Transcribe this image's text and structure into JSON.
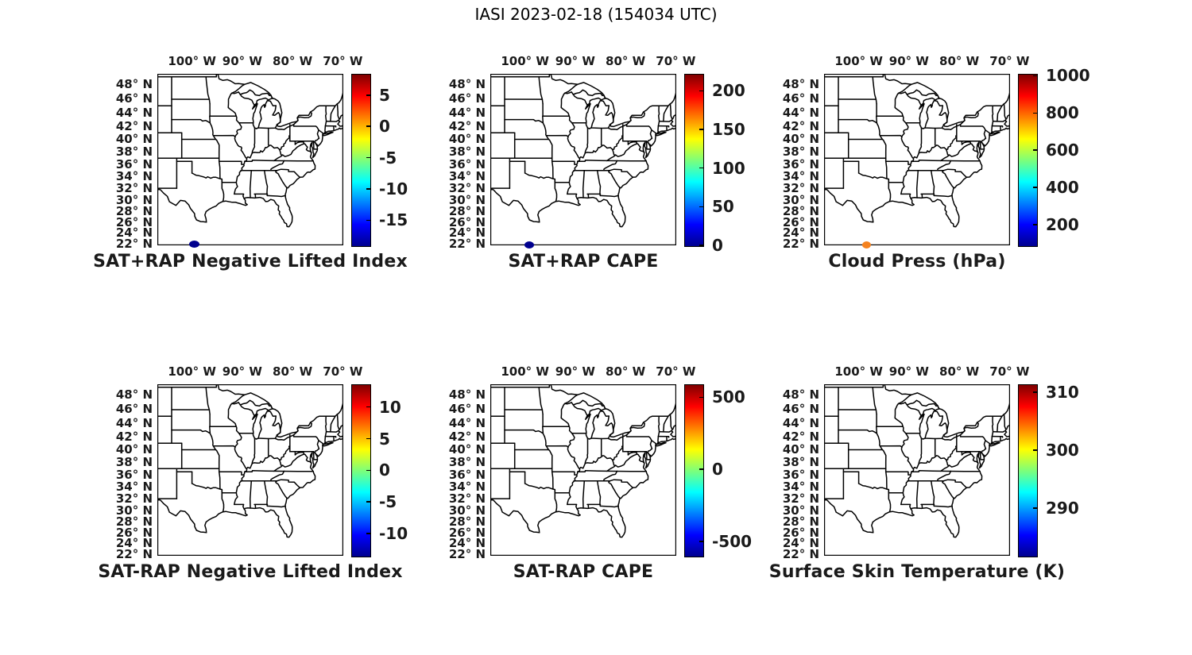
{
  "figure_title": "IASI 2023-02-18 (154034 UTC)",
  "colors": {
    "background": "#ffffff",
    "map_line": "#000000",
    "text": "#1a1a1a",
    "point_low": "#00008F",
    "point_orange": "#F5821F"
  },
  "chart_data": {
    "type": "map-scatter-grid",
    "projection": "mercator",
    "colormap": "jet",
    "grid": {
      "rows": 2,
      "cols": 3
    },
    "extent": {
      "lon_min": -106.9,
      "lon_max": -69.9,
      "lat_min": 21.7,
      "lat_max": 49.4
    },
    "lon_ticks": [
      {
        "value": -100,
        "label": "100° W"
      },
      {
        "value": -90,
        "label": "90° W"
      },
      {
        "value": -80,
        "label": "80° W"
      },
      {
        "value": -70,
        "label": "70° W"
      }
    ],
    "lat_ticks": [
      {
        "value": 48,
        "label": "48° N"
      },
      {
        "value": 46,
        "label": "46° N"
      },
      {
        "value": 44,
        "label": "44° N"
      },
      {
        "value": 42,
        "label": "42° N"
      },
      {
        "value": 40,
        "label": "40° N"
      },
      {
        "value": 38,
        "label": "38° N"
      },
      {
        "value": 36,
        "label": "36° N"
      },
      {
        "value": 34,
        "label": "34° N"
      },
      {
        "value": 32,
        "label": "32° N"
      },
      {
        "value": 30,
        "label": "30° N"
      },
      {
        "value": 28,
        "label": "28° N"
      },
      {
        "value": 26,
        "label": "26° N"
      },
      {
        "value": 24,
        "label": "24° N"
      },
      {
        "value": 22,
        "label": "22° N"
      }
    ],
    "panels": [
      {
        "title": "SAT+RAP Negative Lifted Index",
        "row": 0,
        "col": 0,
        "colorbar": {
          "min": -19.0,
          "max": 8.4,
          "ticks": [
            {
              "value": 5,
              "label": "5"
            },
            {
              "value": 0,
              "label": "0"
            },
            {
              "value": -5,
              "label": "-5"
            },
            {
              "value": -10,
              "label": "-10"
            },
            {
              "value": -15,
              "label": "-15"
            }
          ]
        },
        "points": [
          {
            "lon": -99.5,
            "lat": 21.85,
            "color": "#00008F",
            "w": 13,
            "h": 9
          }
        ]
      },
      {
        "title": "SAT+RAP CAPE",
        "row": 0,
        "col": 1,
        "colorbar": {
          "min": 0,
          "max": 222,
          "ticks": [
            {
              "value": 200,
              "label": "200"
            },
            {
              "value": 150,
              "label": "150"
            },
            {
              "value": 100,
              "label": "100"
            },
            {
              "value": 50,
              "label": "50"
            },
            {
              "value": 0,
              "label": "0"
            }
          ]
        },
        "points": [
          {
            "lon": -99.2,
            "lat": 21.8,
            "color": "#00008F",
            "w": 12,
            "h": 9
          }
        ]
      },
      {
        "title": "Cloud Press (hPa)",
        "row": 0,
        "col": 2,
        "colorbar": {
          "min": 90,
          "max": 1010,
          "ticks": [
            {
              "value": 1000,
              "label": "1000"
            },
            {
              "value": 800,
              "label": "800"
            },
            {
              "value": 600,
              "label": "600"
            },
            {
              "value": 400,
              "label": "400"
            },
            {
              "value": 200,
              "label": "200"
            }
          ]
        },
        "points": [
          {
            "lon": -98.5,
            "lat": 21.75,
            "color": "#F5821F",
            "w": 11,
            "h": 9
          }
        ]
      },
      {
        "title": "SAT-RAP Negative Lifted Index",
        "row": 1,
        "col": 0,
        "colorbar": {
          "min": -13.5,
          "max": 13.6,
          "ticks": [
            {
              "value": 10,
              "label": "10"
            },
            {
              "value": 5,
              "label": "5"
            },
            {
              "value": 0,
              "label": "0"
            },
            {
              "value": -5,
              "label": "-5"
            },
            {
              "value": -10,
              "label": "-10"
            }
          ]
        },
        "points": []
      },
      {
        "title": "SAT-RAP CAPE",
        "row": 1,
        "col": 1,
        "colorbar": {
          "min": -600,
          "max": 590,
          "ticks": [
            {
              "value": 500,
              "label": "500"
            },
            {
              "value": 0,
              "label": "0"
            },
            {
              "value": -500,
              "label": "-500"
            }
          ]
        },
        "points": []
      },
      {
        "title": "Surface Skin Temperature (K)",
        "row": 1,
        "col": 2,
        "colorbar": {
          "min": 281.8,
          "max": 311.4,
          "ticks": [
            {
              "value": 310,
              "label": "310"
            },
            {
              "value": 300,
              "label": "300"
            },
            {
              "value": 290,
              "label": "290"
            }
          ]
        },
        "points": []
      }
    ]
  }
}
